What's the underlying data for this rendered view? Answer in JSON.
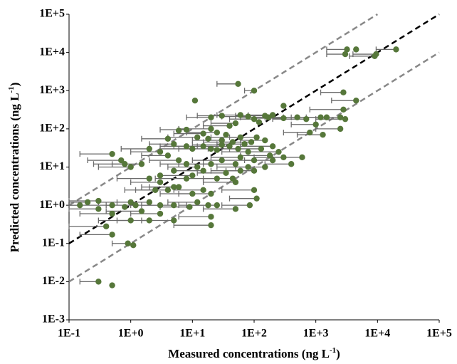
{
  "chart_data": {
    "type": "scatter",
    "x_label": "Measured concentrations (ng L",
    "x_label_sup": "-1",
    "x_label_end": ")",
    "y_label": "Predicted concentrations (ng L",
    "y_label_sup": "-1",
    "y_label_end": ")",
    "log_x": true,
    "log_y": true,
    "xlim": [
      0.1,
      100000
    ],
    "ylim": [
      0.001,
      100000
    ],
    "xticks": [
      {
        "value": 0.1,
        "label": "1E-1"
      },
      {
        "value": 1,
        "label": "1E+0"
      },
      {
        "value": 10,
        "label": "1E+1"
      },
      {
        "value": 100,
        "label": "1E+2"
      },
      {
        "value": 1000,
        "label": "1E+3"
      },
      {
        "value": 10000,
        "label": "1E+4"
      },
      {
        "value": 100000,
        "label": "1E+5"
      }
    ],
    "yticks": [
      {
        "value": 0.001,
        "label": "1E-3"
      },
      {
        "value": 0.01,
        "label": "1E-2"
      },
      {
        "value": 0.1,
        "label": "1E-1"
      },
      {
        "value": 1,
        "label": "1E+0"
      },
      {
        "value": 10,
        "label": "1E+1"
      },
      {
        "value": 100,
        "label": "1E+2"
      },
      {
        "value": 1000,
        "label": "1E+3"
      },
      {
        "value": 10000,
        "label": "1E+4"
      },
      {
        "value": 100000,
        "label": "1E+5"
      }
    ],
    "reference_lines": [
      {
        "x": [
          0.1,
          100000
        ],
        "values": [
          0.1,
          100000
        ],
        "color": "#000000"
      },
      {
        "x": [
          0.1,
          10000
        ],
        "values": [
          1,
          100000
        ],
        "color": "#888888"
      },
      {
        "x": [
          0.1,
          100000
        ],
        "values": [
          0.01,
          10000
        ],
        "color": "#888888"
      }
    ],
    "series": [
      {
        "color": "#56773a",
        "error_color": "#6b6b6b",
        "x": [
          3200,
          4500,
          3000,
          9000,
          9500,
          20000,
          55,
          11,
          100,
          2800,
          4500,
          300,
          20,
          30,
          60,
          80,
          150,
          170,
          200,
          300,
          500,
          700,
          1200,
          1500,
          2500,
          3000,
          2800,
          1000,
          800,
          1300,
          2500,
          100,
          120,
          50,
          40,
          20,
          8,
          6,
          15,
          25,
          35,
          60,
          110,
          90,
          150,
          12,
          18,
          30,
          45,
          70,
          4,
          5,
          8,
          10,
          15,
          20,
          25,
          30,
          40,
          55,
          80,
          130,
          200,
          250,
          180,
          200,
          300,
          600,
          400,
          100,
          60,
          50,
          30,
          20,
          12,
          8,
          6,
          4,
          3,
          2,
          1.5,
          1,
          0.8,
          0.7,
          0.5,
          2,
          3,
          5,
          8,
          10,
          15,
          25,
          35,
          45,
          60,
          80,
          100,
          150,
          5,
          3,
          2.5,
          4,
          6,
          10,
          15,
          20,
          50,
          100,
          110,
          85,
          50,
          25,
          18,
          12,
          9,
          5,
          3,
          2,
          1.2,
          1,
          0.8,
          0.5,
          0.3,
          0.2,
          0.15,
          0.5,
          0.3,
          1.5,
          3,
          5,
          2,
          1,
          20,
          20,
          0.5,
          0.4,
          0.9,
          1.1,
          0.3,
          0.5
        ],
        "values": [
          12000,
          12000,
          9000,
          8000,
          9000,
          12000,
          1500,
          550,
          1000,
          900,
          550,
          400,
          200,
          220,
          230,
          210,
          220,
          200,
          230,
          190,
          200,
          180,
          200,
          200,
          200,
          180,
          320,
          130,
          80,
          70,
          100,
          180,
          150,
          140,
          120,
          100,
          95,
          90,
          75,
          80,
          70,
          60,
          60,
          45,
          50,
          60,
          55,
          50,
          45,
          40,
          55,
          40,
          35,
          30,
          35,
          30,
          28,
          38,
          35,
          30,
          25,
          30,
          35,
          25,
          20,
          15,
          18,
          18,
          12,
          15,
          18,
          12,
          15,
          12,
          10,
          12,
          15,
          20,
          25,
          30,
          12,
          10,
          12,
          15,
          22,
          5,
          4,
          3,
          5,
          6,
          8,
          5,
          7,
          5,
          8,
          10,
          8,
          10,
          8,
          6,
          2.5,
          2.5,
          3,
          2,
          2.5,
          2,
          4,
          2.5,
          1.5,
          1,
          0.8,
          1,
          1,
          1.2,
          0.9,
          1,
          1,
          1.2,
          1,
          1.2,
          0.9,
          1,
          1.3,
          1.2,
          1,
          0.6,
          0.8,
          0.7,
          0.6,
          0.4,
          0.4,
          0.4,
          0.5,
          0.3,
          0.17,
          0.28,
          0.1,
          0.09,
          0.01,
          0.008
        ],
        "x_err_low": [
          1500,
          null,
          1500,
          3500,
          4000,
          9500,
          25,
          null,
          70,
          1200,
          1800,
          null,
          8,
          12,
          25,
          30,
          50,
          60,
          80,
          100,
          150,
          200,
          300,
          400,
          700,
          1000,
          800,
          400,
          300,
          500,
          1000,
          40,
          null,
          20,
          15,
          6,
          3,
          null,
          5,
          8,
          null,
          20,
          40,
          30,
          60,
          4,
          null,
          10,
          15,
          25,
          1.5,
          2,
          3,
          3,
          5,
          6,
          null,
          10,
          12,
          18,
          30,
          40,
          60,
          80,
          60,
          70,
          100,
          200,
          150,
          30,
          20,
          15,
          10,
          6,
          4,
          3,
          2,
          1.5,
          1,
          0.7,
          0.5,
          0.3,
          0.25,
          0.2,
          0.15,
          0.6,
          1,
          1.5,
          2.5,
          3,
          5,
          8,
          12,
          15,
          20,
          25,
          35,
          50,
          null,
          null,
          0.8,
          1.2,
          2,
          3,
          5,
          6,
          15,
          30,
          40,
          30,
          15,
          8,
          6,
          4,
          3,
          1.5,
          1,
          0.6,
          0.4,
          0.3,
          null,
          0.1,
          0.1,
          0.1,
          0.1,
          0.15,
          0.1,
          0.4,
          1,
          1.5,
          0.6,
          0.3,
          6,
          5,
          0.15,
          0.1,
          0.5,
          null,
          0.15,
          null
        ]
      }
    ]
  }
}
